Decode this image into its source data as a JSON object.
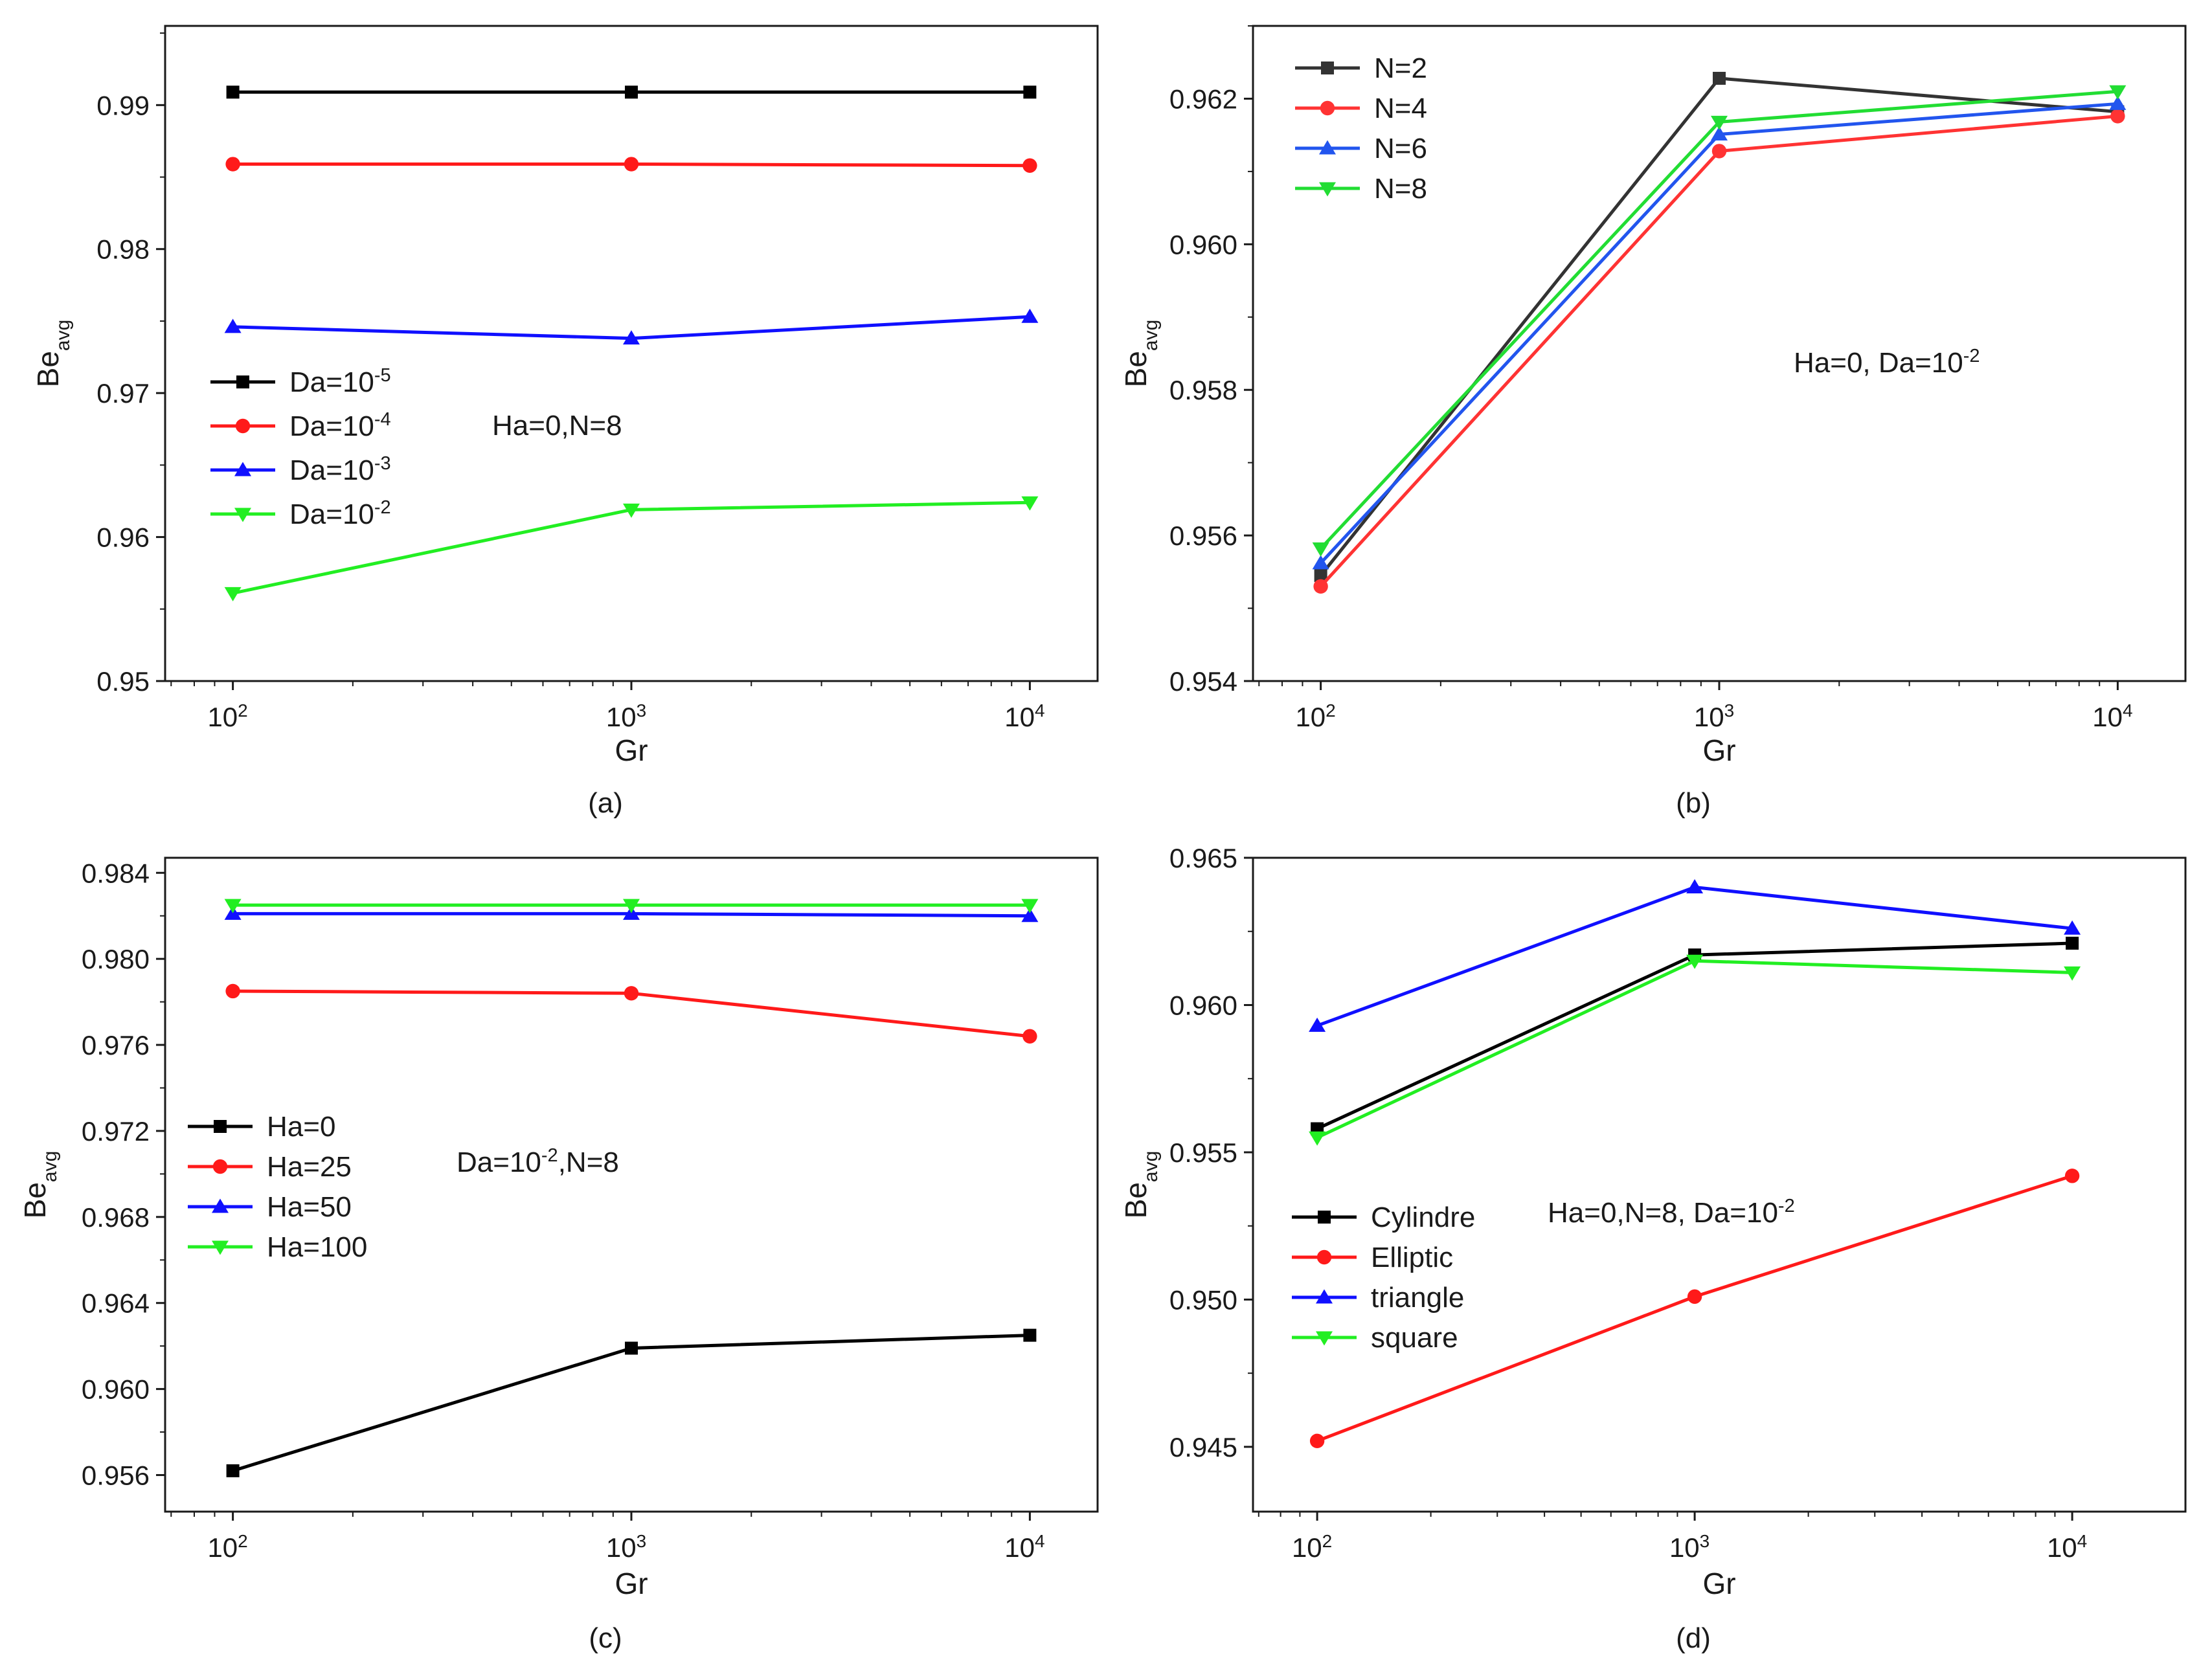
{
  "colors": {
    "black": "#000000",
    "red": "#ff1a1a",
    "blue": "#1010ff",
    "green": "#22ee22",
    "b_black": "#333333",
    "b_red": "#ff3333",
    "b_blue": "#2255ee",
    "b_green": "#22dd33"
  },
  "chart_data": [
    {
      "id": "a",
      "type": "line",
      "panel_label": "(a)",
      "xlabel": "Gr",
      "ylabel_main": "Be",
      "ylabel_sub": "avg",
      "x": [
        100,
        1000,
        10000
      ],
      "x_tick_labels": [
        {
          "base": "10",
          "exp": "2"
        },
        {
          "base": "10",
          "exp": "3"
        },
        {
          "base": "10",
          "exp": "4"
        }
      ],
      "xlim_log10": [
        1.83,
        4.17
      ],
      "ylim": [
        0.95,
        0.9955
      ],
      "yticks": [
        "0.95",
        "0.96",
        "0.97",
        "0.98",
        "0.99"
      ],
      "y_minor_step": 0.005,
      "annotation": [
        {
          "text": "Ha=0,N=8"
        }
      ],
      "legend_position": "center-left",
      "series": [
        {
          "name_parts": [
            {
              "text": "Da=10"
            },
            {
              "text": "-5",
              "sup": true
            }
          ],
          "marker": "square",
          "color_key": "black",
          "values": [
            0.9909,
            0.9909,
            0.9909
          ]
        },
        {
          "name_parts": [
            {
              "text": "Da=10"
            },
            {
              "text": "-4",
              "sup": true
            }
          ],
          "marker": "circle",
          "color_key": "red",
          "values": [
            0.9859,
            0.9859,
            0.9858
          ]
        },
        {
          "name_parts": [
            {
              "text": "Da=10"
            },
            {
              "text": "-3",
              "sup": true
            }
          ],
          "marker": "triangle-up",
          "color_key": "blue",
          "values": [
            0.9746,
            0.9738,
            0.9753
          ]
        },
        {
          "name_parts": [
            {
              "text": "Da=10"
            },
            {
              "text": "-2",
              "sup": true
            }
          ],
          "marker": "triangle-down",
          "color_key": "green",
          "values": [
            0.9561,
            0.9619,
            0.9624
          ]
        }
      ]
    },
    {
      "id": "b",
      "type": "line",
      "panel_label": "(b)",
      "xlabel": "Gr",
      "ylabel_main": "Be",
      "ylabel_sub": "avg",
      "x": [
        100,
        1000,
        10000
      ],
      "x_tick_labels": [
        {
          "base": "10",
          "exp": "2"
        },
        {
          "base": "10",
          "exp": "3"
        },
        {
          "base": "10",
          "exp": "4"
        }
      ],
      "xlim_log10": [
        1.83,
        4.17
      ],
      "ylim": [
        0.954,
        0.963
      ],
      "yticks": [
        "0.954",
        "0.956",
        "0.958",
        "0.960",
        "0.962"
      ],
      "y_minor_step": 0.001,
      "annotation": [
        {
          "text": "Ha=0, Da=10"
        },
        {
          "text": "-2",
          "sup": true
        }
      ],
      "legend_position": "top-left",
      "series": [
        {
          "name_parts": [
            {
              "text": "N=2"
            }
          ],
          "marker": "square",
          "color_key": "b_black",
          "values": [
            0.95545,
            0.96228,
            0.96182
          ]
        },
        {
          "name_parts": [
            {
              "text": "N=4"
            }
          ],
          "marker": "circle",
          "color_key": "b_red",
          "values": [
            0.9553,
            0.96128,
            0.96176
          ]
        },
        {
          "name_parts": [
            {
              "text": "N=6"
            }
          ],
          "marker": "triangle-up",
          "color_key": "b_blue",
          "values": [
            0.95562,
            0.96151,
            0.96193
          ]
        },
        {
          "name_parts": [
            {
              "text": "N=8"
            }
          ],
          "marker": "triangle-down",
          "color_key": "b_green",
          "values": [
            0.95582,
            0.96168,
            0.9621
          ]
        }
      ]
    },
    {
      "id": "c",
      "type": "line",
      "panel_label": "(c)",
      "xlabel": "Gr",
      "ylabel_main": "Be",
      "ylabel_sub": "avg",
      "x": [
        100,
        1000,
        10000
      ],
      "x_tick_labels": [
        {
          "base": "10",
          "exp": "2"
        },
        {
          "base": "10",
          "exp": "3"
        },
        {
          "base": "10",
          "exp": "4"
        }
      ],
      "xlim_log10": [
        1.83,
        4.17
      ],
      "ylim": [
        0.9543,
        0.9847
      ],
      "yticks": [
        "0.956",
        "0.960",
        "0.964",
        "0.968",
        "0.972",
        "0.976",
        "0.980",
        "0.984"
      ],
      "y_minor_step": 0.002,
      "annotation": [
        {
          "text": "Da=10"
        },
        {
          "text": "-2",
          "sup": true
        },
        {
          "text": ",N=8"
        }
      ],
      "legend_position": "center-left",
      "series": [
        {
          "name_parts": [
            {
              "text": "Ha=0"
            }
          ],
          "marker": "square",
          "color_key": "black",
          "values": [
            0.9562,
            0.9619,
            0.9625
          ]
        },
        {
          "name_parts": [
            {
              "text": "Ha=25"
            }
          ],
          "marker": "circle",
          "color_key": "red",
          "values": [
            0.9785,
            0.9784,
            0.9764
          ]
        },
        {
          "name_parts": [
            {
              "text": "Ha=50"
            }
          ],
          "marker": "triangle-up",
          "color_key": "blue",
          "values": [
            0.9821,
            0.9821,
            0.982
          ]
        },
        {
          "name_parts": [
            {
              "text": "Ha=100"
            }
          ],
          "marker": "triangle-down",
          "color_key": "green",
          "values": [
            0.9825,
            0.9825,
            0.9825
          ]
        }
      ]
    },
    {
      "id": "d",
      "type": "line",
      "panel_label": "(d)",
      "xlabel": "Gr",
      "ylabel_main": "Be",
      "ylabel_sub": "avg",
      "x": [
        100,
        1000,
        10000
      ],
      "x_tick_labels": [
        {
          "base": "10",
          "exp": "2"
        },
        {
          "base": "10",
          "exp": "3"
        },
        {
          "base": "10",
          "exp": "4"
        }
      ],
      "xlim_log10": [
        1.83,
        4.3
      ],
      "ylim": [
        0.9428,
        0.965
      ],
      "yticks": [
        "0.945",
        "0.950",
        "0.955",
        "0.960",
        "0.965"
      ],
      "y_minor_step": 0.0025,
      "annotation": [
        {
          "text": "Ha=0,N=8, Da=10"
        },
        {
          "text": "-2",
          "sup": true
        }
      ],
      "legend_position": "center-left",
      "series": [
        {
          "name_parts": [
            {
              "text": "Cylindre"
            }
          ],
          "marker": "square",
          "color_key": "black",
          "values": [
            0.9558,
            0.9617,
            0.9621
          ]
        },
        {
          "name_parts": [
            {
              "text": "Elliptic"
            }
          ],
          "marker": "circle",
          "color_key": "red",
          "values": [
            0.9452,
            0.9501,
            0.9542
          ]
        },
        {
          "name_parts": [
            {
              "text": "triangle"
            }
          ],
          "marker": "triangle-up",
          "color_key": "blue",
          "values": [
            0.9593,
            0.964,
            0.9626
          ]
        },
        {
          "name_parts": [
            {
              "text": "square"
            }
          ],
          "marker": "triangle-down",
          "color_key": "green",
          "values": [
            0.9555,
            0.9615,
            0.9611
          ]
        }
      ]
    }
  ]
}
